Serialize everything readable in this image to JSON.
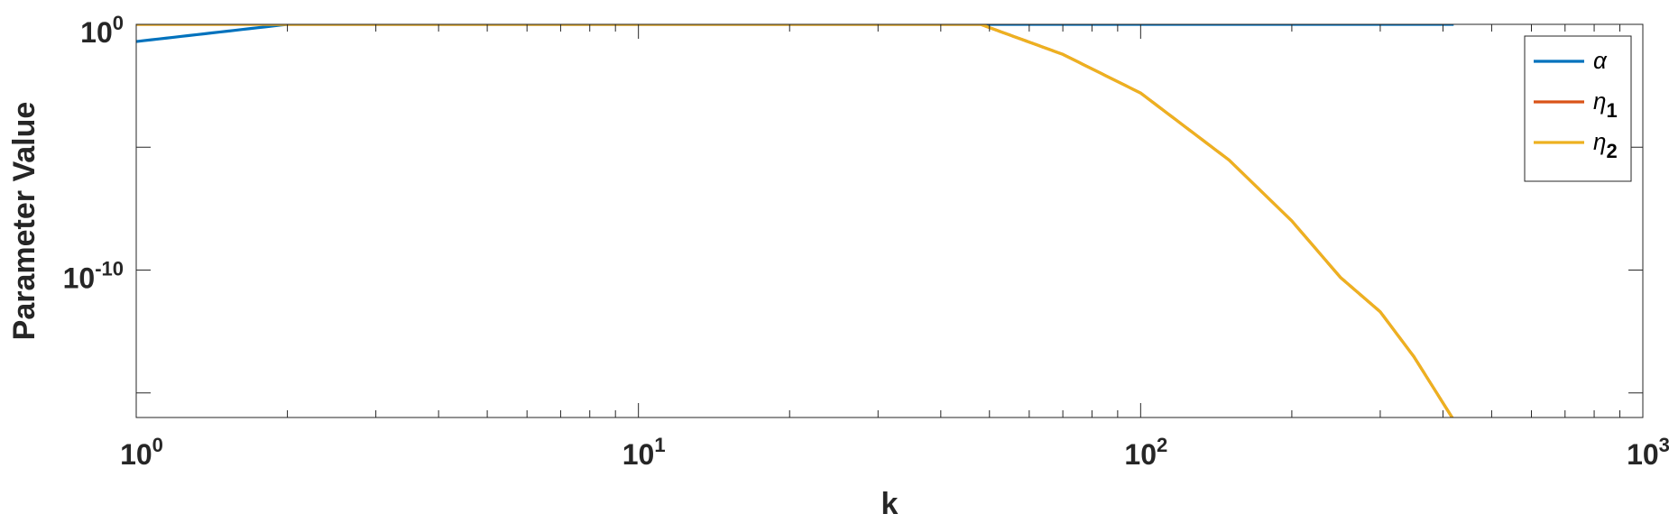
{
  "chart_data": {
    "type": "line",
    "title": "",
    "xlabel": "k",
    "ylabel": "Parameter Value",
    "xscale": "log",
    "yscale": "log",
    "xlim": [
      1,
      1000
    ],
    "ylim": [
      1e-16,
      1
    ],
    "x_ticks": [
      {
        "value": 1,
        "base": "10",
        "exp": "0"
      },
      {
        "value": 10,
        "base": "10",
        "exp": "1"
      },
      {
        "value": 100,
        "base": "10",
        "exp": "2"
      },
      {
        "value": 1000,
        "base": "10",
        "exp": "3"
      }
    ],
    "y_ticks": [
      {
        "value": 1,
        "base": "10",
        "exp": "0"
      },
      {
        "value": 1e-10,
        "base": "10",
        "exp": "-10"
      }
    ],
    "y_minor_ticks": [
      1e-05,
      1e-15
    ],
    "grid": false,
    "legend_position": "top-right",
    "series": [
      {
        "name": "α",
        "color": "#0072BD",
        "x": [
          1,
          2,
          3,
          5,
          10,
          20,
          48,
          100,
          420
        ],
        "y": [
          0.2,
          1,
          1,
          1,
          1,
          1,
          1,
          1,
          1
        ]
      },
      {
        "name": "η1",
        "name_base": "η",
        "name_sub": "1",
        "color": "#D95319",
        "x": [
          1,
          2,
          5,
          10,
          20,
          48,
          70,
          100,
          150,
          200,
          250,
          300,
          350,
          420
        ],
        "y": [
          1,
          1,
          1,
          1,
          1,
          1,
          0.06,
          0.0016,
          3e-06,
          1e-08,
          5e-11,
          2e-12,
          3e-14,
          8e-17
        ]
      },
      {
        "name": "η2",
        "name_base": "η",
        "name_sub": "2",
        "color": "#EDB120",
        "x": [
          1,
          2,
          5,
          10,
          20,
          48,
          70,
          100,
          150,
          200,
          250,
          300,
          350,
          420
        ],
        "y": [
          1,
          1,
          1,
          1,
          1,
          1,
          0.06,
          0.0016,
          3e-06,
          1e-08,
          5e-11,
          2e-12,
          3e-14,
          8e-17
        ]
      }
    ]
  }
}
